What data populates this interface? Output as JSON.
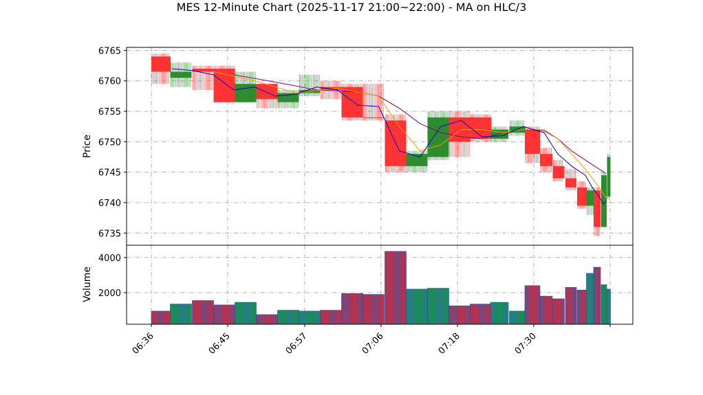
{
  "chart_data": {
    "type": "candlestick",
    "title": "MES 12-Minute Chart (2025-11-17 21:00~22:00) - MA on HLC/3",
    "price_panel": {
      "ylabel": "Price",
      "ylim": [
        6733,
        6765.5
      ],
      "yticks": [
        "6735",
        "6740",
        "6745",
        "6750",
        "6755",
        "6760",
        "6765"
      ],
      "grid": true,
      "candles": [
        {
          "o": 6761.5,
          "h": 6764.5,
          "l": 6759.5,
          "c": 6764.0,
          "color": "red",
          "wick": "red"
        },
        {
          "o": 6760.5,
          "h": 6763.0,
          "l": 6759.0,
          "c": 6761.5,
          "color": "green",
          "wick": "green"
        },
        {
          "o": 6761.5,
          "h": 6762.5,
          "l": 6758.5,
          "c": 6762.0,
          "color": "red",
          "wick": "red"
        },
        {
          "o": 6756.5,
          "h": 6762.5,
          "l": 6756.5,
          "c": 6762.0,
          "color": "red",
          "wick": "red"
        },
        {
          "o": 6756.5,
          "h": 6761.5,
          "l": 6756.5,
          "c": 6759.5,
          "color": "green",
          "wick": "green"
        },
        {
          "o": 6757.0,
          "h": 6759.5,
          "l": 6755.5,
          "c": 6759.5,
          "color": "red",
          "wick": "red"
        },
        {
          "o": 6756.5,
          "h": 6758.5,
          "l": 6755.5,
          "c": 6758.0,
          "color": "green",
          "wick": "green"
        },
        {
          "o": 6758.0,
          "h": 6761.0,
          "l": 6757.5,
          "c": 6758.5,
          "color": "green",
          "wick": "green"
        },
        {
          "o": 6758.5,
          "h": 6760.0,
          "l": 6757.0,
          "c": 6759.0,
          "color": "red",
          "wick": "red"
        },
        {
          "o": 6754.0,
          "h": 6759.5,
          "l": 6753.5,
          "c": 6759.0,
          "color": "red",
          "wick": "red"
        },
        {
          "o": 6754.0,
          "h": 6759.5,
          "l": 6753.5,
          "c": 6754.0,
          "color": "red",
          "wick": "red"
        },
        {
          "o": 6746.0,
          "h": 6754.5,
          "l": 6745.0,
          "c": 6753.5,
          "color": "red",
          "wick": "red"
        },
        {
          "o": 6746.0,
          "h": 6748.5,
          "l": 6745.0,
          "c": 6748.0,
          "color": "green",
          "wick": "green"
        },
        {
          "o": 6747.5,
          "h": 6755.0,
          "l": 6747.0,
          "c": 6754.0,
          "color": "green",
          "wick": "green"
        },
        {
          "o": 6754.0,
          "h": 6755.0,
          "l": 6747.5,
          "c": 6750.0,
          "color": "red",
          "wick": "red"
        },
        {
          "o": 6754.0,
          "h": 6754.5,
          "l": 6750.0,
          "c": 6750.5,
          "color": "red",
          "wick": "red"
        },
        {
          "o": 6750.5,
          "h": 6752.5,
          "l": 6750.0,
          "c": 6752.0,
          "color": "green",
          "wick": "green"
        },
        {
          "o": 6751.5,
          "h": 6753.5,
          "l": 6751.0,
          "c": 6752.5,
          "color": "green",
          "wick": "green"
        },
        {
          "o": 6752.0,
          "h": 6752.5,
          "l": 6746.5,
          "c": 6748.0,
          "color": "red",
          "wick": "red"
        },
        {
          "o": 6748.0,
          "h": 6749.0,
          "l": 6745.0,
          "c": 6746.0,
          "color": "red",
          "wick": "red"
        },
        {
          "o": 6746.0,
          "h": 6747.0,
          "l": 6743.5,
          "c": 6744.0,
          "color": "red",
          "wick": "red"
        },
        {
          "o": 6744.0,
          "h": 6745.5,
          "l": 6742.0,
          "c": 6742.5,
          "color": "red",
          "wick": "red"
        },
        {
          "o": 6742.5,
          "h": 6743.5,
          "l": 6739.0,
          "c": 6739.5,
          "color": "red",
          "wick": "red"
        },
        {
          "o": 6739.5,
          "h": 6742.5,
          "l": 6738.0,
          "c": 6742.0,
          "color": "green",
          "wick": "green"
        },
        {
          "o": 6742.0,
          "h": 6742.5,
          "l": 6734.5,
          "c": 6736.0,
          "color": "red",
          "wick": "red"
        },
        {
          "o": 6736.0,
          "h": 6745.0,
          "l": 6736.0,
          "c": 6744.5,
          "color": "green",
          "wick": "green"
        },
        {
          "o": 6741.0,
          "h": 6748.0,
          "l": 6740.5,
          "c": 6747.5,
          "color": "green",
          "wick": "green"
        }
      ],
      "ma_fast": {
        "color": "#0000cc",
        "points": [
          [
            0.15,
            6762.0
          ],
          [
            0.3,
            6761.7
          ],
          [
            0.45,
            6761.0
          ],
          [
            0.6,
            6758.5
          ],
          [
            0.75,
            6759.0
          ],
          [
            0.9,
            6757.5
          ],
          [
            1.05,
            6757.8
          ],
          [
            1.2,
            6759.0
          ],
          [
            1.35,
            6758.5
          ],
          [
            1.5,
            6756.0
          ],
          [
            1.65,
            6755.8
          ],
          [
            1.8,
            6748.5
          ],
          [
            1.95,
            6747.5
          ],
          [
            2.1,
            6752.5
          ],
          [
            2.25,
            6753.5
          ],
          [
            2.4,
            6750.8
          ],
          [
            2.55,
            6751.0
          ],
          [
            2.7,
            6752.5
          ],
          [
            2.85,
            6751.5
          ],
          [
            2.95,
            6748.0
          ],
          [
            3.05,
            6746.0
          ],
          [
            3.15,
            6744.5
          ],
          [
            3.2,
            6742.5
          ],
          [
            3.25,
            6741.0
          ],
          [
            3.28,
            6739.8
          ],
          [
            3.3,
            6740.2
          ]
        ]
      },
      "ma_mid": {
        "color": "#ff9900",
        "points": [
          [
            0.45,
            6761.5
          ],
          [
            0.75,
            6760.0
          ],
          [
            1.05,
            6758.0
          ],
          [
            1.35,
            6758.8
          ],
          [
            1.65,
            6757.5
          ],
          [
            1.8,
            6752.5
          ],
          [
            1.95,
            6748.5
          ],
          [
            2.1,
            6749.5
          ],
          [
            2.25,
            6752.0
          ],
          [
            2.4,
            6752.0
          ],
          [
            2.55,
            6751.5
          ],
          [
            2.7,
            6752.0
          ],
          [
            2.85,
            6752.0
          ],
          [
            2.95,
            6750.5
          ],
          [
            3.05,
            6748.0
          ],
          [
            3.15,
            6745.5
          ],
          [
            3.25,
            6742.5
          ],
          [
            3.3,
            6740.8
          ]
        ]
      },
      "ma_slow": {
        "color": "#800080",
        "points": [
          [
            0.6,
            6761.0
          ],
          [
            0.9,
            6759.8
          ],
          [
            1.2,
            6758.5
          ],
          [
            1.5,
            6758.2
          ],
          [
            1.65,
            6757.5
          ],
          [
            1.8,
            6755.5
          ],
          [
            1.95,
            6753.0
          ],
          [
            2.1,
            6751.5
          ],
          [
            2.25,
            6750.8
          ],
          [
            2.4,
            6750.5
          ],
          [
            2.55,
            6751.5
          ],
          [
            2.7,
            6752.0
          ],
          [
            2.85,
            6751.8
          ],
          [
            2.95,
            6750.5
          ],
          [
            3.05,
            6748.5
          ],
          [
            3.15,
            6747.0
          ],
          [
            3.25,
            6745.5
          ],
          [
            3.3,
            6744.8
          ]
        ]
      }
    },
    "volume_panel": {
      "ylabel": "Volume",
      "ylim": [
        200,
        4700
      ],
      "yticks": [
        "2000",
        "4000"
      ],
      "grid": true,
      "bars": [
        {
          "v": 950,
          "color": "red"
        },
        {
          "v": 1350,
          "color": "green"
        },
        {
          "v": 1550,
          "color": "red"
        },
        {
          "v": 1300,
          "color": "red"
        },
        {
          "v": 1450,
          "color": "green"
        },
        {
          "v": 750,
          "color": "red"
        },
        {
          "v": 1000,
          "color": "green"
        },
        {
          "v": 950,
          "color": "green"
        },
        {
          "v": 1000,
          "color": "red"
        },
        {
          "v": 1950,
          "color": "red"
        },
        {
          "v": 1900,
          "color": "red"
        },
        {
          "v": 4350,
          "color": "red"
        },
        {
          "v": 2200,
          "color": "green"
        },
        {
          "v": 2250,
          "color": "green"
        },
        {
          "v": 1250,
          "color": "red"
        },
        {
          "v": 1350,
          "color": "red"
        },
        {
          "v": 1450,
          "color": "green"
        },
        {
          "v": 950,
          "color": "green"
        },
        {
          "v": 2400,
          "color": "red"
        },
        {
          "v": 1800,
          "color": "red"
        },
        {
          "v": 1650,
          "color": "red"
        },
        {
          "v": 2300,
          "color": "red"
        },
        {
          "v": 2150,
          "color": "red"
        },
        {
          "v": 3100,
          "color": "green"
        },
        {
          "v": 3450,
          "color": "red"
        },
        {
          "v": 2450,
          "color": "green"
        },
        {
          "v": 2200,
          "color": "green"
        }
      ]
    },
    "x_axis": {
      "ticklabels": [
        "06:36",
        "06:45",
        "06:57",
        "07:06",
        "07:18",
        "07:30"
      ]
    }
  }
}
